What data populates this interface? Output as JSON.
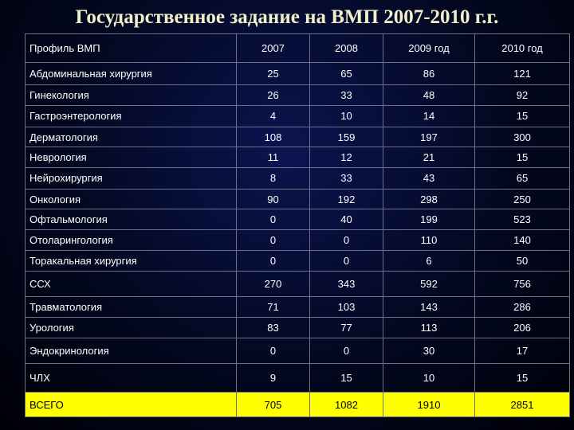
{
  "title": "Государственное задание на ВМП 2007-2010 г.г.",
  "table": {
    "header": [
      "Профиль ВМП",
      "2007",
      "2008",
      "2009 год",
      "2010 год"
    ],
    "rows": [
      [
        "Абдоминальная хирургия",
        "25",
        "65",
        "86",
        "121"
      ],
      [
        "Гинекология",
        "26",
        "33",
        "48",
        "92"
      ],
      [
        "Гастроэнтерология",
        "4",
        "10",
        "14",
        "15"
      ],
      [
        "Дерматология",
        "108",
        "159",
        "197",
        "300"
      ],
      [
        "Неврология",
        "11",
        "12",
        "21",
        "15"
      ],
      [
        "Нейрохирургия",
        "8",
        "33",
        "43",
        "65"
      ],
      [
        "Онкология",
        "90",
        "192",
        "298",
        "250"
      ],
      [
        "Офтальмология",
        "0",
        "40",
        "199",
        "523"
      ],
      [
        "Отоларингология",
        "0",
        "0",
        "110",
        "140"
      ],
      [
        "Торакальная хирургия",
        "0",
        "0",
        "6",
        "50"
      ],
      [
        "ССХ",
        "270",
        "343",
        "592",
        "756"
      ],
      [
        "Травматология",
        "71",
        "103",
        "143",
        "286"
      ],
      [
        "Урология",
        "83",
        "77",
        "113",
        "206"
      ],
      [
        "Эндокринология",
        "0",
        "0",
        "30",
        "17"
      ],
      [
        "ЧЛХ",
        "9",
        "15",
        "10",
        "15"
      ]
    ],
    "total": [
      "ВСЕГО",
      "705",
      "1082",
      "1910",
      "2851"
    ]
  },
  "colors": {
    "background": "#030820",
    "title": "#f2eec8",
    "text": "#ffffff",
    "total_row": "#ffff00",
    "grid_line": "#6f7088"
  }
}
